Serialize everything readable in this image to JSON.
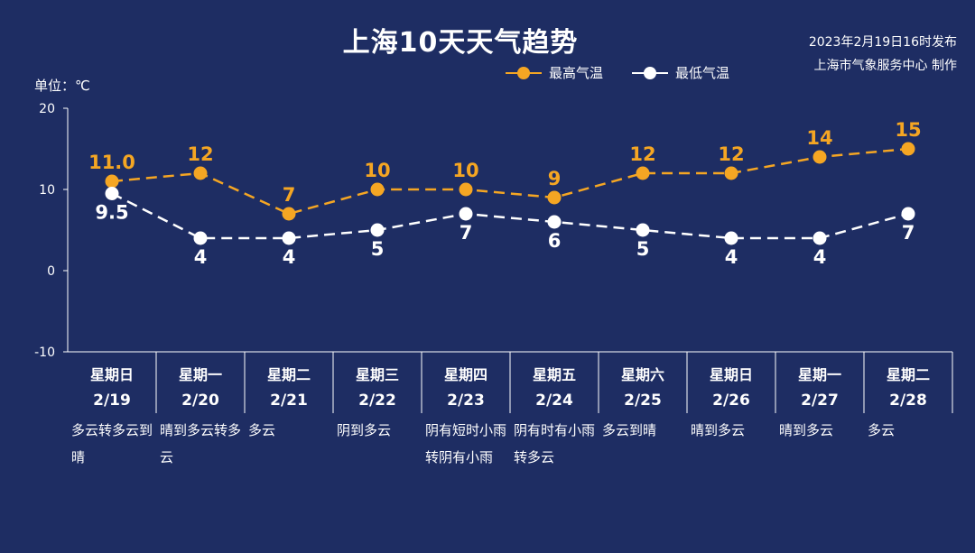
{
  "title": "上海10天天气趋势",
  "issue": {
    "line1": "2023年2月19日16时发布",
    "line2": "上海市气象服务中心 制作"
  },
  "unit_label": "单位：℃",
  "colors": {
    "high": "#f5a623",
    "low": "#ffffff",
    "background": "#1e2d63"
  },
  "chart_data": {
    "type": "line",
    "title": "上海10天天气趋势",
    "ylabel": "单位：℃",
    "ylim": [
      -10,
      20
    ],
    "yticks": [
      "20",
      "10",
      "0",
      "-10"
    ],
    "grid": false,
    "legend_position": "top",
    "days": [
      {
        "weekday": "星期日",
        "date": "2/19",
        "weather": "多云转多云到晴"
      },
      {
        "weekday": "星期一",
        "date": "2/20",
        "weather": "晴到多云转多云"
      },
      {
        "weekday": "星期二",
        "date": "2/21",
        "weather": "多云"
      },
      {
        "weekday": "星期三",
        "date": "2/22",
        "weather": "阴到多云"
      },
      {
        "weekday": "星期四",
        "date": "2/23",
        "weather": "阴有短时小雨转阴有小雨"
      },
      {
        "weekday": "星期五",
        "date": "2/24",
        "weather": "阴有时有小雨转多云"
      },
      {
        "weekday": "星期六",
        "date": "2/25",
        "weather": "多云到晴"
      },
      {
        "weekday": "星期日",
        "date": "2/26",
        "weather": "晴到多云"
      },
      {
        "weekday": "星期一",
        "date": "2/27",
        "weather": "晴到多云"
      },
      {
        "weekday": "星期二",
        "date": "2/28",
        "weather": "多云"
      }
    ],
    "series": [
      {
        "name": "最高气温",
        "values": [
          11.0,
          12,
          7,
          10,
          10,
          9,
          12,
          12,
          14,
          15
        ],
        "labels": [
          "11.0",
          "12",
          "7",
          "10",
          "10",
          "9",
          "12",
          "12",
          "14",
          "15"
        ]
      },
      {
        "name": "最低气温",
        "values": [
          9.5,
          4,
          4,
          5,
          7,
          6,
          5,
          4,
          4,
          7
        ],
        "labels": [
          "9.5",
          "4",
          "4",
          "5",
          "7",
          "6",
          "5",
          "4",
          "4",
          "7"
        ]
      }
    ]
  }
}
